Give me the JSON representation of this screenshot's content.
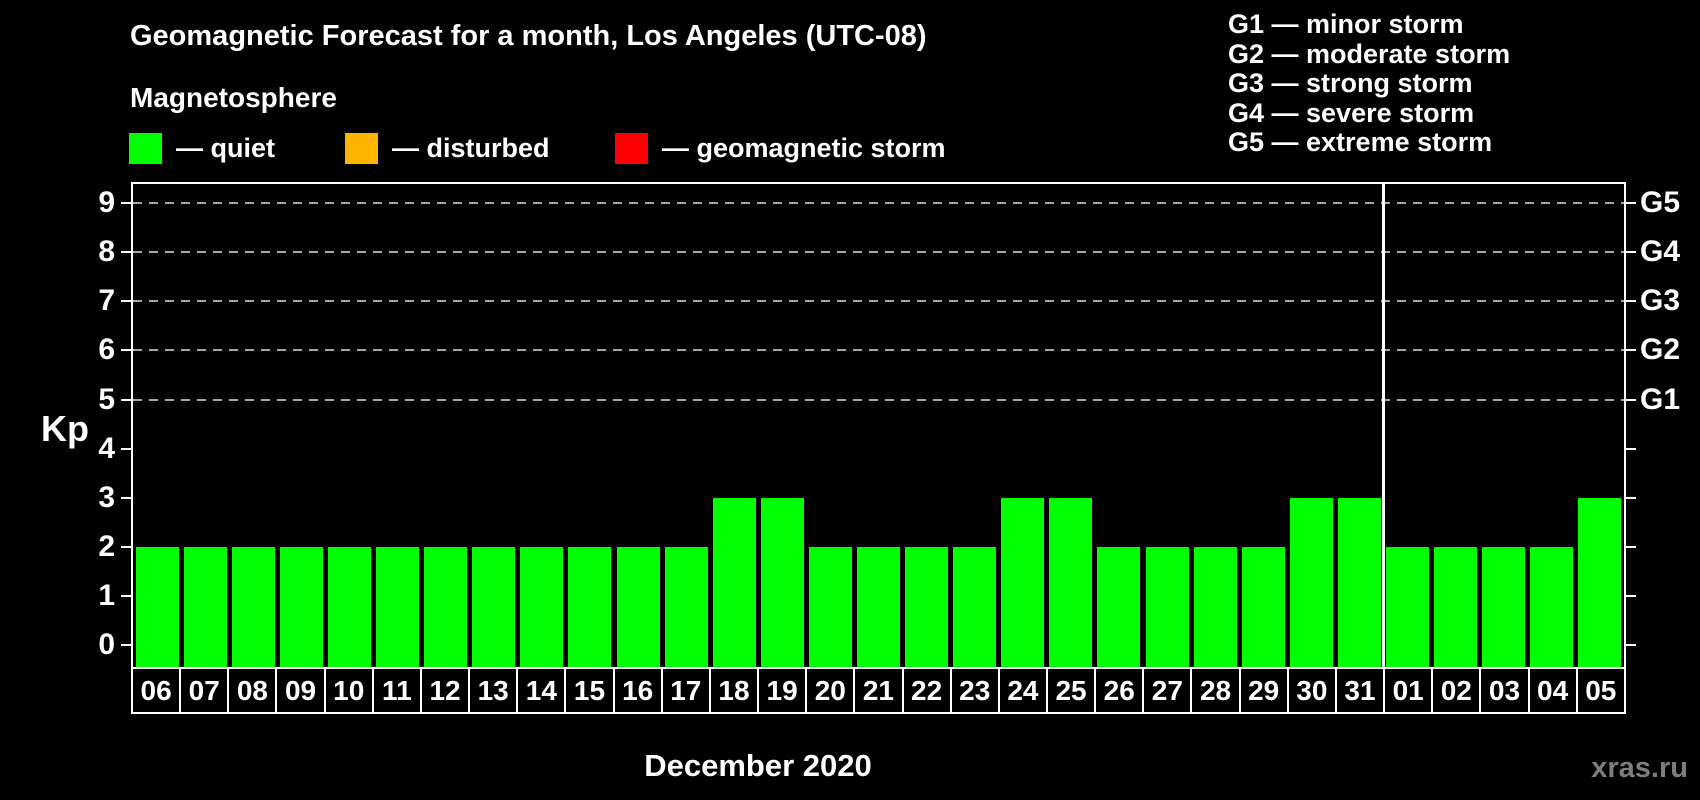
{
  "header": {
    "title": "Geomagnetic Forecast for a month, Los Angeles (UTC-08)",
    "subtitle": "Magnetosphere"
  },
  "legend": {
    "items": [
      {
        "label": "— quiet",
        "color": "#00ff00",
        "icon": "quiet-swatch"
      },
      {
        "label": "— disturbed",
        "color": "#ffb400",
        "icon": "disturbed-swatch"
      },
      {
        "label": "— geomagnetic storm",
        "color": "#ff0000",
        "icon": "storm-swatch"
      }
    ]
  },
  "storm_scale_legend": {
    "items": [
      "G1 — minor storm",
      "G2 — moderate storm",
      "G3 — strong storm",
      "G4 — severe storm",
      "G5 — extreme storm"
    ]
  },
  "chart_data": {
    "type": "bar",
    "title": "Geomagnetic Forecast for a month, Los Angeles (UTC-08)",
    "ylabel": "Kp",
    "xlabel": "December 2020",
    "ylim": [
      -0.5,
      9.4
    ],
    "yticks": [
      0,
      1,
      2,
      3,
      4,
      5,
      6,
      7,
      8,
      9
    ],
    "gridlines_at": [
      5,
      6,
      7,
      8,
      9
    ],
    "grid": "dashed horizontal lines at Kp 5-9 only",
    "legend_position": "top-left",
    "right_axis_labels": [
      {
        "kp": 5,
        "label": "G1"
      },
      {
        "kp": 6,
        "label": "G2"
      },
      {
        "kp": 7,
        "label": "G3"
      },
      {
        "kp": 8,
        "label": "G4"
      },
      {
        "kp": 9,
        "label": "G5"
      }
    ],
    "categories": [
      "06",
      "07",
      "08",
      "09",
      "10",
      "11",
      "12",
      "13",
      "14",
      "15",
      "16",
      "17",
      "18",
      "19",
      "20",
      "21",
      "22",
      "23",
      "24",
      "25",
      "26",
      "27",
      "28",
      "29",
      "30",
      "31",
      "01",
      "02",
      "03",
      "04",
      "05"
    ],
    "values": [
      2,
      2,
      2,
      2,
      2,
      2,
      2,
      2,
      2,
      2,
      2,
      2,
      3,
      3,
      2,
      2,
      2,
      2,
      3,
      3,
      2,
      2,
      2,
      2,
      3,
      3,
      2,
      2,
      2,
      2,
      3
    ],
    "bar_color": "#00ff00",
    "month_boundary_slot": 26
  },
  "watermark": "xras.ru"
}
